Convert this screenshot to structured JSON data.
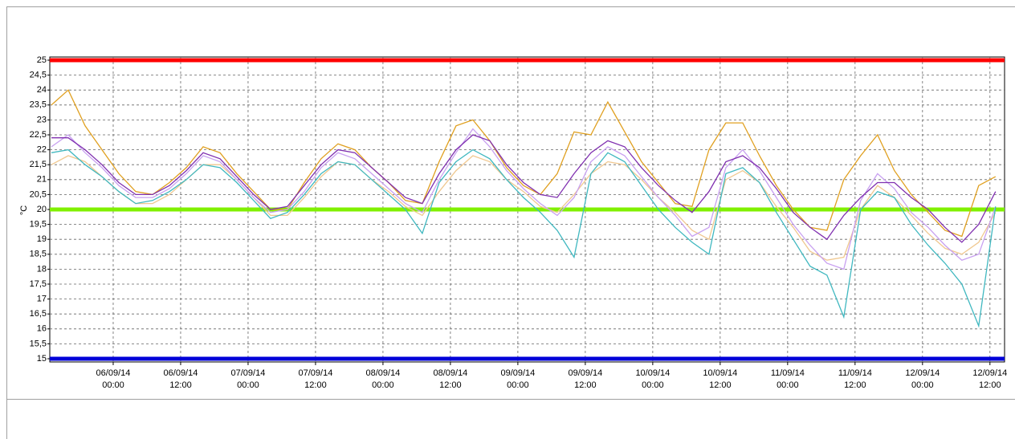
{
  "chart_data": {
    "type": "line",
    "y_label": "°C",
    "x": [
      "05/09/14 13:00",
      "05/09/14 16:00",
      "05/09/14 19:00",
      "05/09/14 22:00",
      "06/09/14 01:00",
      "06/09/14 04:00",
      "06/09/14 07:00",
      "06/09/14 10:00",
      "06/09/14 13:00",
      "06/09/14 16:00",
      "06/09/14 19:00",
      "06/09/14 22:00",
      "07/09/14 01:00",
      "07/09/14 04:00",
      "07/09/14 07:00",
      "07/09/14 10:00",
      "07/09/14 13:00",
      "07/09/14 16:00",
      "07/09/14 19:00",
      "07/09/14 22:00",
      "08/09/14 01:00",
      "08/09/14 04:00",
      "08/09/14 07:00",
      "08/09/14 10:00",
      "08/09/14 13:00",
      "08/09/14 16:00",
      "08/09/14 19:00",
      "08/09/14 22:00",
      "09/09/14 01:00",
      "09/09/14 04:00",
      "09/09/14 07:00",
      "09/09/14 10:00",
      "09/09/14 13:00",
      "09/09/14 16:00",
      "09/09/14 19:00",
      "09/09/14 22:00",
      "10/09/14 01:00",
      "10/09/14 04:00",
      "10/09/14 07:00",
      "10/09/14 10:00",
      "10/09/14 13:00",
      "10/09/14 16:00",
      "10/09/14 19:00",
      "10/09/14 22:00",
      "11/09/14 01:00",
      "11/09/14 04:00",
      "11/09/14 07:00",
      "11/09/14 10:00",
      "11/09/14 13:00",
      "11/09/14 16:00",
      "11/09/14 19:00",
      "11/09/14 22:00",
      "12/09/14 01:00",
      "12/09/14 04:00",
      "12/09/14 07:00",
      "12/09/14 10:00",
      "12/09/14 13:00"
    ],
    "series": [
      {
        "color": "#f0c890",
        "values": [
          21.5,
          21.8,
          21.6,
          21.1,
          20.6,
          20.2,
          20.2,
          20.5,
          21.0,
          21.5,
          21.5,
          21.0,
          20.4,
          19.8,
          19.8,
          20.4,
          21.1,
          21.6,
          21.5,
          21.0,
          20.6,
          20.1,
          19.8,
          20.6,
          21.3,
          21.8,
          21.6,
          21.0,
          20.6,
          20.1,
          19.9,
          20.5,
          21.2,
          21.6,
          21.5,
          21.0,
          20.4,
          19.9,
          19.3,
          19.0,
          21.0,
          21.3,
          20.9,
          20.1,
          19.4,
          18.6,
          18.3,
          18.4,
          20.0,
          20.8,
          20.4,
          19.8,
          19.2,
          18.7,
          18.5,
          18.9,
          19.9
        ]
      },
      {
        "color": "#e0a020",
        "values": [
          23.5,
          24.0,
          22.8,
          22.0,
          21.2,
          20.6,
          20.5,
          20.9,
          21.4,
          22.1,
          21.9,
          21.2,
          20.6,
          20.0,
          20.0,
          20.9,
          21.7,
          22.2,
          22.0,
          21.4,
          20.9,
          20.3,
          20.2,
          21.6,
          22.8,
          23.0,
          22.3,
          21.4,
          20.8,
          20.5,
          21.2,
          22.6,
          22.5,
          23.6,
          22.6,
          21.6,
          20.9,
          20.2,
          20.1,
          22.0,
          22.9,
          22.9,
          21.8,
          20.8,
          20.0,
          19.4,
          19.3,
          21.0,
          21.8,
          22.5,
          21.3,
          20.5,
          19.9,
          19.3,
          19.1,
          20.8,
          21.1
        ]
      },
      {
        "color": "#c8a0f0",
        "values": [
          22.1,
          22.5,
          21.9,
          21.4,
          20.8,
          20.4,
          20.4,
          20.7,
          21.2,
          21.8,
          21.6,
          21.0,
          20.4,
          19.9,
          20.0,
          20.6,
          21.4,
          21.9,
          21.7,
          21.2,
          20.7,
          20.2,
          19.9,
          21.0,
          21.9,
          22.7,
          22.1,
          21.3,
          20.7,
          20.2,
          19.8,
          20.4,
          21.6,
          22.1,
          21.8,
          21.1,
          20.4,
          19.8,
          19.1,
          19.4,
          21.4,
          22.0,
          21.3,
          20.4,
          19.5,
          18.8,
          18.2,
          18.0,
          20.3,
          21.2,
          20.7,
          19.9,
          19.4,
          18.8,
          18.3,
          18.5,
          20.1
        ]
      },
      {
        "color": "#40b8c0",
        "values": [
          21.9,
          22.0,
          21.5,
          21.1,
          20.6,
          20.2,
          20.3,
          20.6,
          21.0,
          21.5,
          21.4,
          20.9,
          20.3,
          19.7,
          19.9,
          20.5,
          21.2,
          21.6,
          21.5,
          21.0,
          20.5,
          20.0,
          19.2,
          20.9,
          21.6,
          22.0,
          21.7,
          21.0,
          20.4,
          19.9,
          19.3,
          18.4,
          21.2,
          21.9,
          21.6,
          20.8,
          20.0,
          19.4,
          18.9,
          18.5,
          21.2,
          21.4,
          20.9,
          19.9,
          19.0,
          18.1,
          17.8,
          16.4,
          20.0,
          20.6,
          20.4,
          19.5,
          18.8,
          18.2,
          17.5,
          16.1,
          20.1
        ]
      },
      {
        "color": "#8030b0",
        "values": [
          22.4,
          22.4,
          22.0,
          21.5,
          20.9,
          20.5,
          20.5,
          20.8,
          21.3,
          21.9,
          21.7,
          21.1,
          20.5,
          20.0,
          20.1,
          20.8,
          21.5,
          22.0,
          21.9,
          21.4,
          20.9,
          20.4,
          20.2,
          21.2,
          22.0,
          22.5,
          22.3,
          21.5,
          20.9,
          20.5,
          20.4,
          21.2,
          21.9,
          22.3,
          22.1,
          21.4,
          20.8,
          20.3,
          19.9,
          20.6,
          21.6,
          21.8,
          21.4,
          20.7,
          19.9,
          19.4,
          19.0,
          19.8,
          20.4,
          20.9,
          20.9,
          20.4,
          20.0,
          19.4,
          18.9,
          19.5,
          20.6
        ]
      }
    ],
    "reference_lines": [
      {
        "value": 25,
        "color": "#ff0000"
      },
      {
        "value": 20,
        "color": "#80f000"
      },
      {
        "value": 15,
        "color": "#0000d8"
      }
    ],
    "xlim": [
      "05/09/14 12:43",
      "12/09/14 14:36"
    ],
    "xticks": [
      "06/09/14\n00:00",
      "06/09/14\n12:00",
      "07/09/14\n00:00",
      "07/09/14\n12:00",
      "08/09/14\n00:00",
      "08/09/14\n12:00",
      "09/09/14\n00:00",
      "09/09/14\n12:00",
      "10/09/14\n00:00",
      "10/09/14\n12:00",
      "11/09/14\n00:00",
      "11/09/14\n12:00",
      "12/09/14\n00:00",
      "12/09/14\n12:00"
    ],
    "ylim": [
      15,
      25
    ],
    "yticks": [
      15,
      {
        "value": 15.5,
        "label": "15,5"
      },
      16,
      {
        "value": 16.5,
        "label": "16,5"
      },
      17,
      {
        "value": 17.5,
        "label": "17,5"
      },
      18,
      {
        "value": 18.5,
        "label": "18,5"
      },
      19,
      {
        "value": 19.5,
        "label": "19,5"
      },
      20,
      {
        "value": 20.5,
        "label": "20,5"
      },
      21,
      {
        "value": 21.5,
        "label": "21,5"
      },
      22,
      {
        "value": 22.5,
        "label": "22,5"
      },
      23,
      {
        "value": 23.5,
        "label": "23,5"
      },
      24,
      {
        "value": 24.5,
        "label": "24,5"
      },
      25
    ],
    "grid": true
  }
}
